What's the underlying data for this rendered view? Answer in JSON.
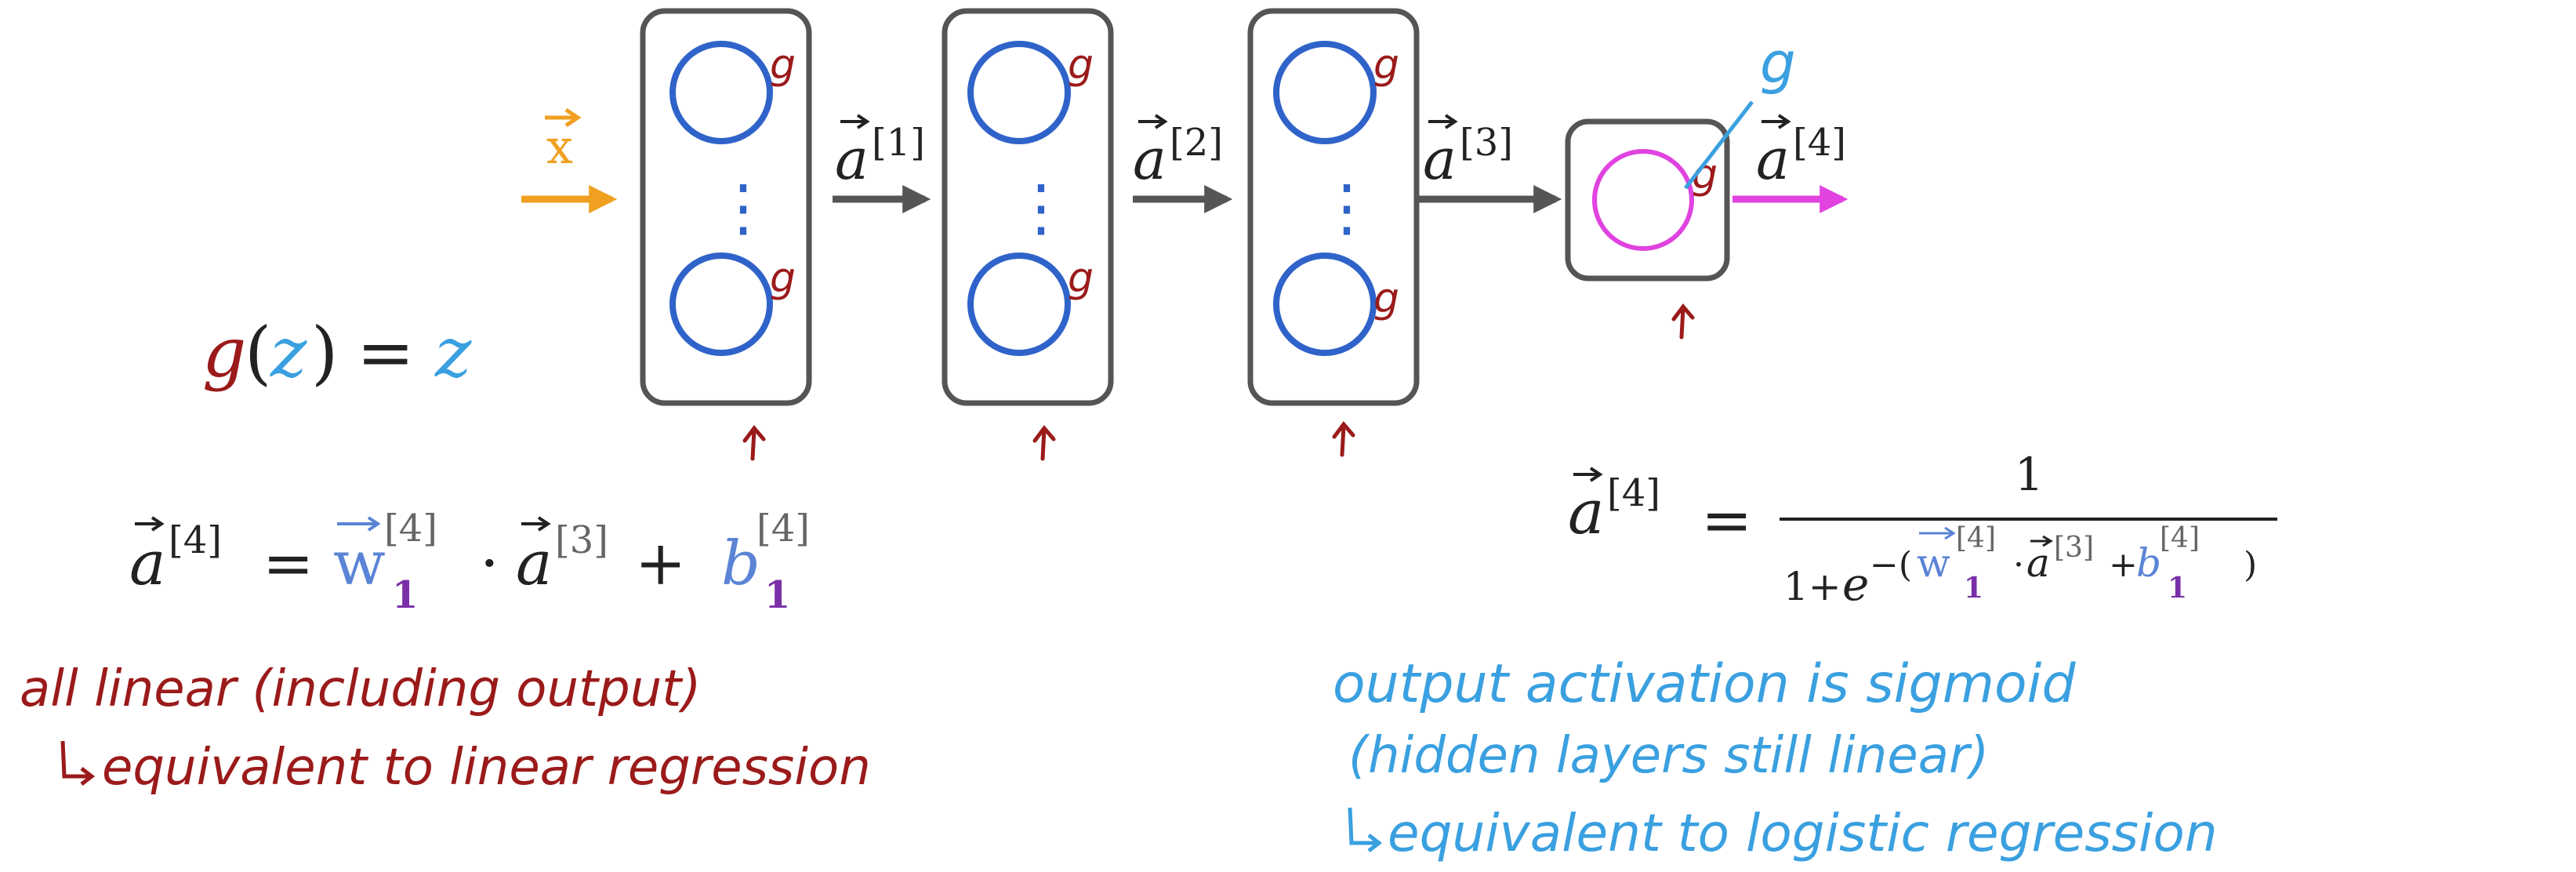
{
  "colors": {
    "box": "#555555",
    "neuron_hidden": "#2f63c9",
    "neuron_output": "#e043e0",
    "red_ink": "#9b1a1a",
    "blue_ink": "#3aa0e0",
    "input_arrow": "#f0a020",
    "gray_arrow": "#555555",
    "output_arrow": "#e043e0",
    "weight_blue": "#5b84d6",
    "subscript_purple": "#7a2fa8",
    "bracket_gray": "#666666",
    "text": "#222222"
  },
  "network": {
    "input_label": "x",
    "arrow_labels": [
      "a",
      "a",
      "a",
      "a"
    ],
    "layer_superscripts": [
      "[1]",
      "[2]",
      "[3]",
      "[4]"
    ],
    "activation_mark": "g",
    "ellipsis": "⋮",
    "output_activation_label": "g"
  },
  "activation_def": {
    "fn": "g",
    "open": "(",
    "arg": "z",
    "close": ")",
    "eq": "=",
    "rhs": "z"
  },
  "linear_eq": {
    "lhs": "a",
    "lhs_sup": "[4]",
    "eq": "=",
    "w": "w",
    "w_sup": "[4]",
    "w_sub": "1",
    "dot": "·",
    "a": "a",
    "a_sup": "[3]",
    "plus": "+",
    "b": "b",
    "b_sup": "[4]",
    "b_sub": "1"
  },
  "sigmoid_eq": {
    "lhs": "a",
    "lhs_sup": "[4]",
    "eq": "=",
    "numerator": "1",
    "den_prefix": "1+",
    "e": "e",
    "exp_open": "−(",
    "w": "w",
    "w_sup": "[4]",
    "w_sub": "1",
    "dot": "·",
    "a": "a",
    "a_sup": "[3]",
    "plus": "+",
    "b": "b",
    "b_sup": "[4]",
    "b_sub": "1",
    "exp_close": ")"
  },
  "notes_left": [
    "all linear (including output)",
    "equivalent to linear regression"
  ],
  "notes_right": [
    "output activation is sigmoid",
    "(hidden layers still linear)",
    "equivalent to logistic regression"
  ]
}
